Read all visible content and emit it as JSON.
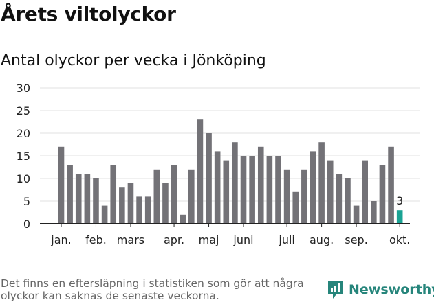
{
  "header": {
    "title": "Årets viltolyckor",
    "subtitle": "Antal olyckor per vecka i Jönköping"
  },
  "footer": {
    "note": "Det finns en eftersläpning i statistiken som gör att några olyckor kan saknas de senaste veckorna.",
    "brand": "Newsworthy"
  },
  "colors": {
    "bar": "#737277",
    "highlight": "#1aa394",
    "gridline": "#e2e2e2",
    "axis": "#222222",
    "brand": "#26857b"
  },
  "chart_data": {
    "type": "bar",
    "title": "Antal olyckor per vecka i Jönköping",
    "xlabel": "",
    "ylabel": "",
    "ylim": [
      0,
      30
    ],
    "yticks": [
      0,
      5,
      10,
      15,
      20,
      25,
      30
    ],
    "grid": true,
    "x_month_labels": [
      {
        "label": "jan.",
        "at_week": 1
      },
      {
        "label": "feb.",
        "at_week": 5
      },
      {
        "label": "mars",
        "at_week": 9
      },
      {
        "label": "apr.",
        "at_week": 14
      },
      {
        "label": "maj",
        "at_week": 18
      },
      {
        "label": "juni",
        "at_week": 22
      },
      {
        "label": "juli",
        "at_week": 27
      },
      {
        "label": "aug.",
        "at_week": 31
      },
      {
        "label": "sep.",
        "at_week": 35
      },
      {
        "label": "okt.",
        "at_week": 40
      }
    ],
    "values": [
      17,
      13,
      11,
      11,
      10,
      4,
      13,
      8,
      9,
      6,
      6,
      12,
      9,
      13,
      2,
      12,
      23,
      20,
      16,
      14,
      18,
      15,
      15,
      17,
      15,
      15,
      12,
      7,
      12,
      16,
      18,
      14,
      11,
      10,
      4,
      14,
      5,
      13,
      17,
      3
    ],
    "highlight_last": true,
    "last_value_label": "3"
  }
}
